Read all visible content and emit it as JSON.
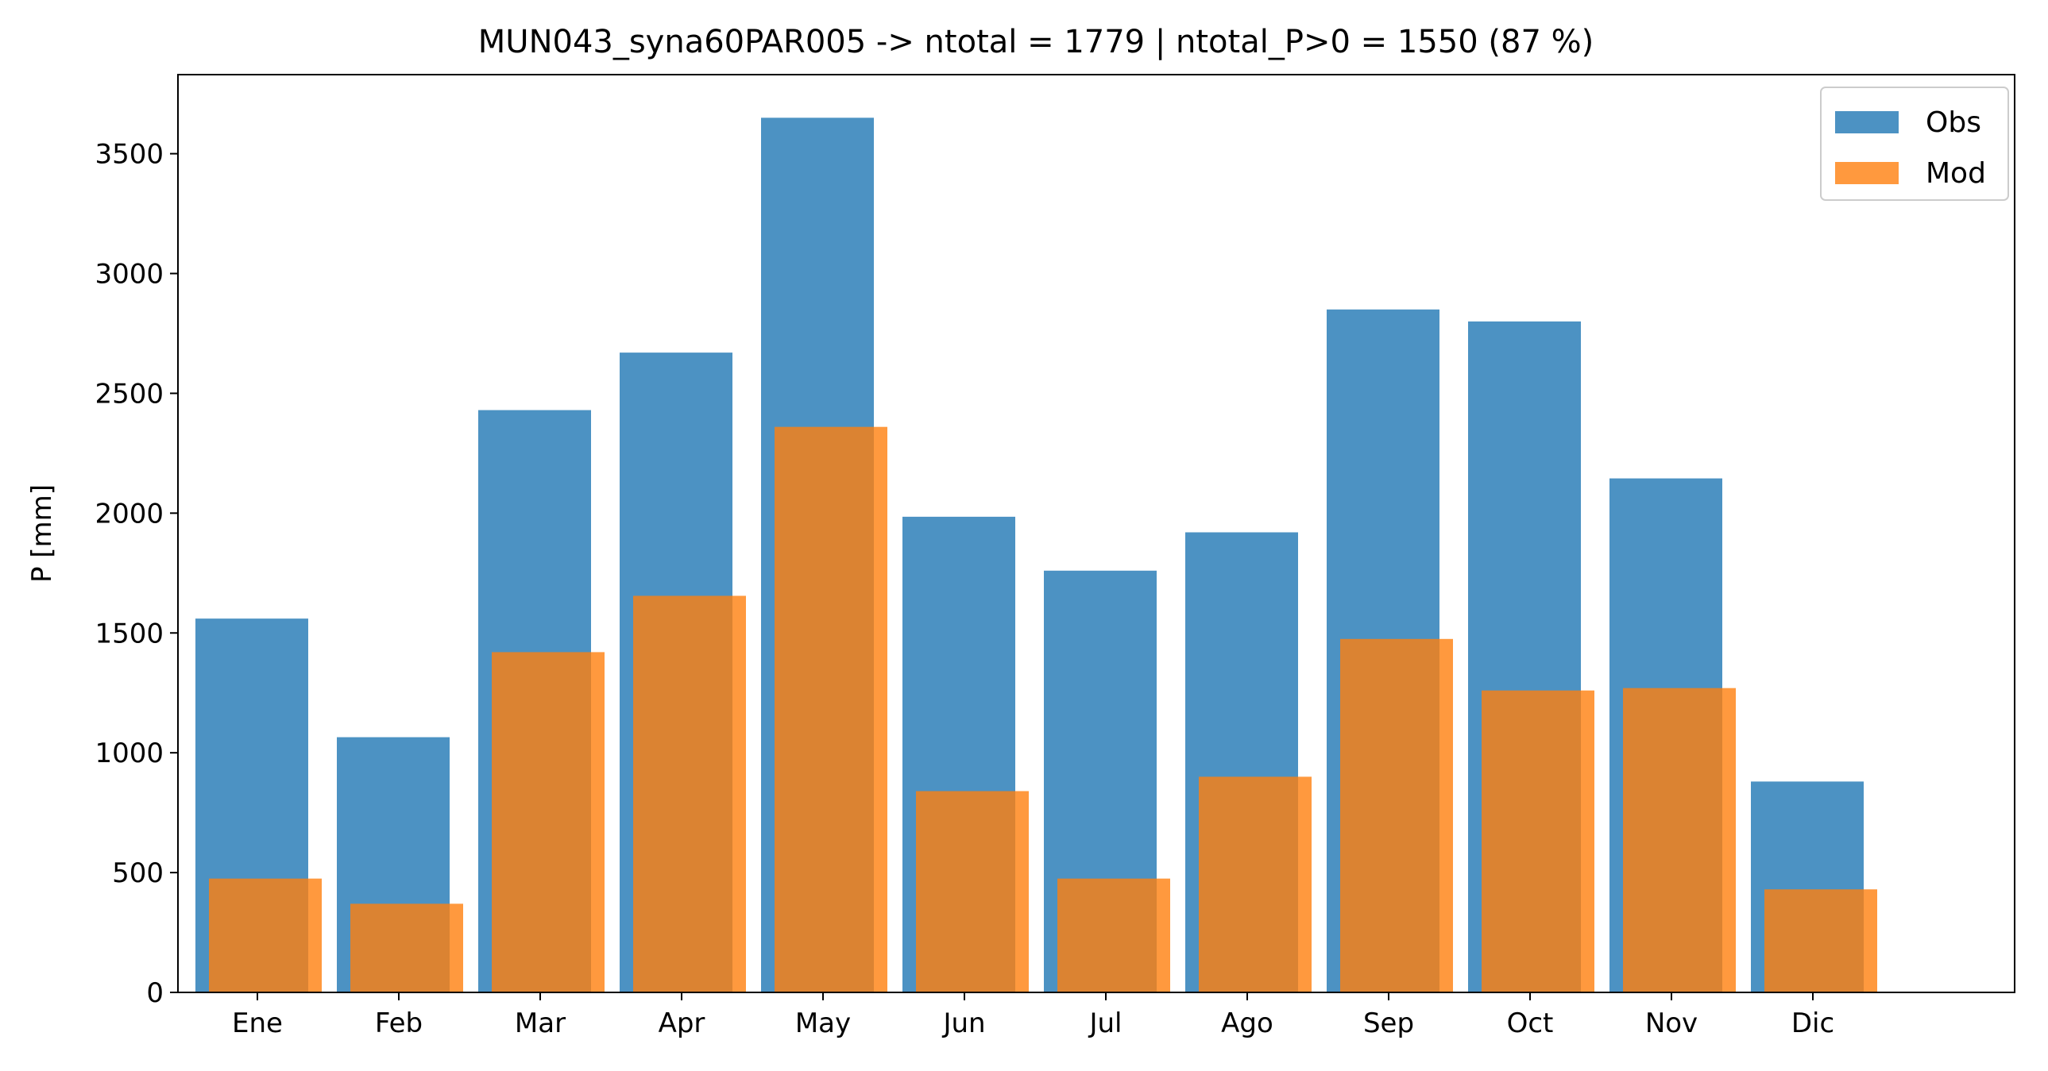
{
  "chart_data": {
    "type": "bar",
    "title": "MUN043_syna60PAR005 -> ntotal = 1779 | ntotal_P>0 = 1550 (87 %)",
    "xlabel": "",
    "ylabel": "P [mm]",
    "categories": [
      "Ene",
      "Feb",
      "Mar",
      "Apr",
      "May",
      "Jun",
      "Jul",
      "Ago",
      "Sep",
      "Oct",
      "Nov",
      "Dic"
    ],
    "series": [
      {
        "name": "Obs",
        "color": "#1f77b4",
        "values": [
          1560,
          1065,
          2430,
          2670,
          3650,
          1985,
          1760,
          1920,
          2850,
          2800,
          2145,
          880
        ]
      },
      {
        "name": "Mod",
        "color": "#ff7f0e",
        "values": [
          475,
          370,
          1420,
          1655,
          2360,
          840,
          475,
          900,
          1475,
          1260,
          1270,
          430
        ]
      }
    ],
    "ylim": [
      0,
      3830
    ],
    "yticks": [
      0,
      500,
      1000,
      1500,
      2000,
      2500,
      3000,
      3500
    ],
    "grid": false,
    "legend_position": "top-right"
  }
}
